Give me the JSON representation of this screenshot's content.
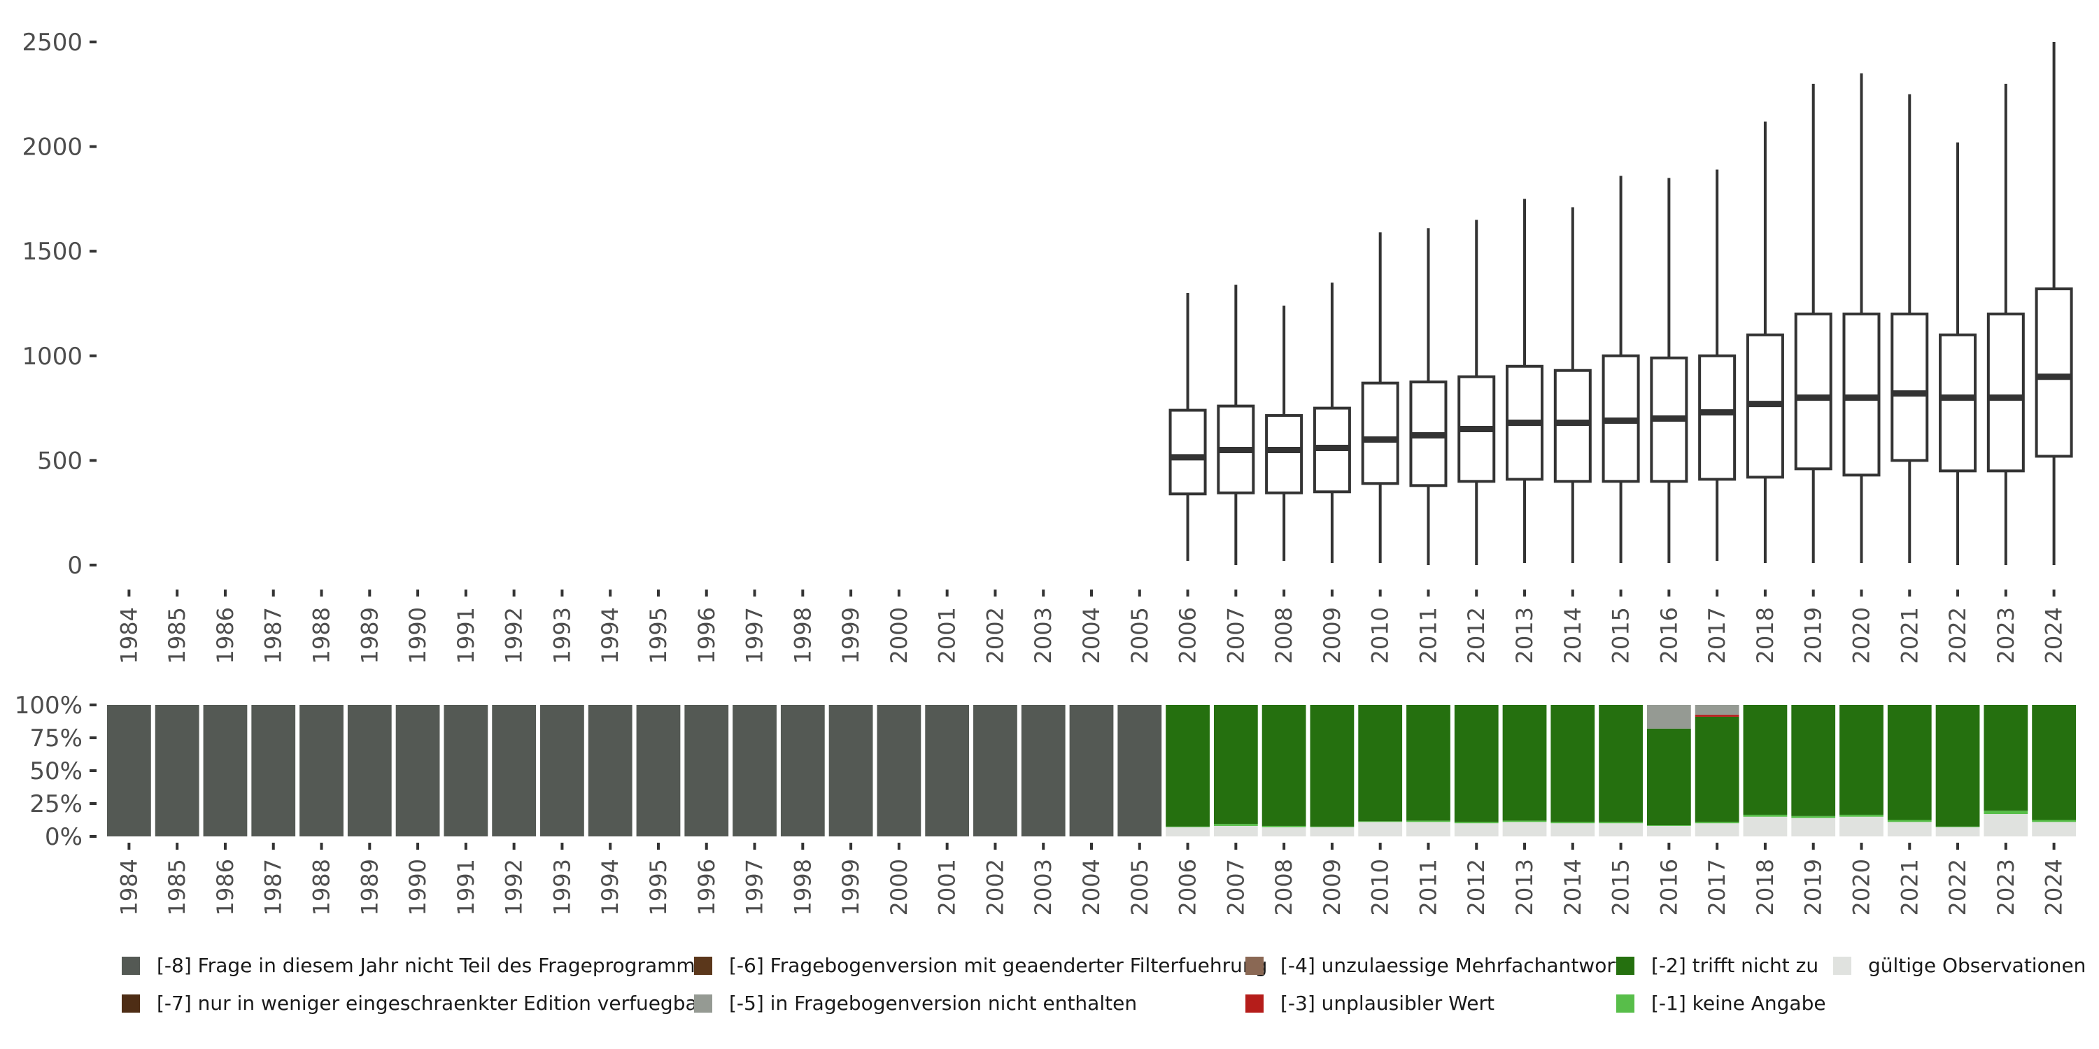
{
  "chart_data": [
    {
      "type": "boxplot",
      "title": "",
      "xlabel": "",
      "ylabel": "",
      "ylim": [
        0,
        2500
      ],
      "yticks": [
        0,
        500,
        1000,
        1500,
        2000,
        2500
      ],
      "categories": [
        "1984",
        "1985",
        "1986",
        "1987",
        "1988",
        "1989",
        "1990",
        "1991",
        "1992",
        "1993",
        "1994",
        "1995",
        "1996",
        "1997",
        "1998",
        "1999",
        "2000",
        "2001",
        "2002",
        "2003",
        "2004",
        "2005",
        "2006",
        "2007",
        "2008",
        "2009",
        "2010",
        "2011",
        "2012",
        "2013",
        "2014",
        "2015",
        "2016",
        "2017",
        "2018",
        "2019",
        "2020",
        "2021",
        "2022",
        "2023",
        "2024"
      ],
      "boxes": [
        {
          "year": "2006",
          "whisker_low": 20,
          "q1": 340,
          "median": 515,
          "q3": 740,
          "whisker_high": 1300
        },
        {
          "year": "2007",
          "whisker_low": 0,
          "q1": 345,
          "median": 550,
          "q3": 760,
          "whisker_high": 1340
        },
        {
          "year": "2008",
          "whisker_low": 20,
          "q1": 345,
          "median": 550,
          "q3": 715,
          "whisker_high": 1240
        },
        {
          "year": "2009",
          "whisker_low": 10,
          "q1": 350,
          "median": 560,
          "q3": 750,
          "whisker_high": 1350
        },
        {
          "year": "2010",
          "whisker_low": 10,
          "q1": 390,
          "median": 600,
          "q3": 870,
          "whisker_high": 1590
        },
        {
          "year": "2011",
          "whisker_low": 0,
          "q1": 380,
          "median": 620,
          "q3": 875,
          "whisker_high": 1610
        },
        {
          "year": "2012",
          "whisker_low": 0,
          "q1": 400,
          "median": 650,
          "q3": 900,
          "whisker_high": 1650
        },
        {
          "year": "2013",
          "whisker_low": 10,
          "q1": 410,
          "median": 680,
          "q3": 950,
          "whisker_high": 1750
        },
        {
          "year": "2014",
          "whisker_low": 10,
          "q1": 400,
          "median": 680,
          "q3": 930,
          "whisker_high": 1710
        },
        {
          "year": "2015",
          "whisker_low": 10,
          "q1": 400,
          "median": 690,
          "q3": 1000,
          "whisker_high": 1860
        },
        {
          "year": "2016",
          "whisker_low": 10,
          "q1": 400,
          "median": 700,
          "q3": 990,
          "whisker_high": 1850
        },
        {
          "year": "2017",
          "whisker_low": 20,
          "q1": 410,
          "median": 730,
          "q3": 1000,
          "whisker_high": 1890
        },
        {
          "year": "2018",
          "whisker_low": 10,
          "q1": 420,
          "median": 770,
          "q3": 1100,
          "whisker_high": 2120
        },
        {
          "year": "2019",
          "whisker_low": 10,
          "q1": 460,
          "median": 800,
          "q3": 1200,
          "whisker_high": 2300
        },
        {
          "year": "2020",
          "whisker_low": 10,
          "q1": 430,
          "median": 800,
          "q3": 1200,
          "whisker_high": 2350
        },
        {
          "year": "2021",
          "whisker_low": 10,
          "q1": 500,
          "median": 820,
          "q3": 1200,
          "whisker_high": 2250
        },
        {
          "year": "2022",
          "whisker_low": 0,
          "q1": 450,
          "median": 800,
          "q3": 1100,
          "whisker_high": 2020
        },
        {
          "year": "2023",
          "whisker_low": 0,
          "q1": 450,
          "median": 800,
          "q3": 1200,
          "whisker_high": 2300
        },
        {
          "year": "2024",
          "whisker_low": 0,
          "q1": 520,
          "median": 900,
          "q3": 1320,
          "whisker_high": 2500
        }
      ]
    },
    {
      "type": "stacked_bar",
      "ylim": [
        0,
        100
      ],
      "ytick_labels": [
        "0%",
        "25%",
        "50%",
        "75%",
        "100%"
      ],
      "yticks": [
        0,
        25,
        50,
        75,
        100
      ],
      "categories": [
        "1984",
        "1985",
        "1986",
        "1987",
        "1988",
        "1989",
        "1990",
        "1991",
        "1992",
        "1993",
        "1994",
        "1995",
        "1996",
        "1997",
        "1998",
        "1999",
        "2000",
        "2001",
        "2002",
        "2003",
        "2004",
        "2005",
        "2006",
        "2007",
        "2008",
        "2009",
        "2010",
        "2011",
        "2012",
        "2013",
        "2014",
        "2015",
        "2016",
        "2017",
        "2018",
        "2019",
        "2020",
        "2021",
        "2022",
        "2023",
        "2024"
      ],
      "stack_order": [
        "valid",
        "m1",
        "m2",
        "m3",
        "m4",
        "m5",
        "m6",
        "m7",
        "m8"
      ],
      "series": [
        {
          "key": "valid",
          "name": "gültige Observationen",
          "color": "#e0e2df",
          "values": [
            0,
            0,
            0,
            0,
            0,
            0,
            0,
            0,
            0,
            0,
            0,
            0,
            0,
            0,
            0,
            0,
            0,
            0,
            0,
            0,
            0,
            0,
            7,
            8,
            7,
            7,
            11,
            11,
            10,
            11,
            10,
            10,
            8,
            10,
            15,
            14,
            15,
            11,
            7,
            17,
            11
          ]
        },
        {
          "key": "m1",
          "name": "[-1] keine Angabe",
          "color": "#58be4a",
          "values": [
            0,
            0,
            0,
            0,
            0,
            0,
            0,
            0,
            0,
            0,
            0,
            0,
            0,
            0,
            0,
            0,
            0,
            0,
            0,
            0,
            0,
            0,
            0.5,
            1.5,
            1,
            0.5,
            0.5,
            1,
            1,
            1,
            1,
            1,
            0.5,
            1,
            1.5,
            1.5,
            1.5,
            1.5,
            0.5,
            2.5,
            1.5
          ]
        },
        {
          "key": "m2",
          "name": "[-2] trifft nicht zu",
          "color": "#25700f",
          "values": [
            0,
            0,
            0,
            0,
            0,
            0,
            0,
            0,
            0,
            0,
            0,
            0,
            0,
            0,
            0,
            0,
            0,
            0,
            0,
            0,
            0,
            0,
            92.5,
            90.5,
            92,
            92.5,
            88.5,
            88,
            89,
            88,
            89,
            89,
            73.5,
            80,
            83.5,
            84.5,
            83.5,
            87.5,
            92.5,
            80.5,
            87.5
          ]
        },
        {
          "key": "m3",
          "name": "[-3] unplausibler Wert",
          "color": "#b51d1a",
          "values": [
            0,
            0,
            0,
            0,
            0,
            0,
            0,
            0,
            0,
            0,
            0,
            0,
            0,
            0,
            0,
            0,
            0,
            0,
            0,
            0,
            0,
            0,
            0,
            0,
            0,
            0,
            0,
            0,
            0,
            0,
            0,
            0,
            0,
            1.5,
            0,
            0,
            0,
            0,
            0,
            0,
            0
          ]
        },
        {
          "key": "m4",
          "name": "[-4] unzulaessige Mehrfachantwort",
          "color": "#8a6854",
          "values": [
            0,
            0,
            0,
            0,
            0,
            0,
            0,
            0,
            0,
            0,
            0,
            0,
            0,
            0,
            0,
            0,
            0,
            0,
            0,
            0,
            0,
            0,
            0,
            0,
            0,
            0,
            0,
            0,
            0,
            0,
            0,
            0,
            0,
            0,
            0,
            0,
            0,
            0,
            0,
            0,
            0
          ]
        },
        {
          "key": "m5",
          "name": "[-5] in Fragebogenversion nicht enthalten",
          "color": "#959a93",
          "values": [
            0,
            0,
            0,
            0,
            0,
            0,
            0,
            0,
            0,
            0,
            0,
            0,
            0,
            0,
            0,
            0,
            0,
            0,
            0,
            0,
            0,
            0,
            0,
            0,
            0,
            0,
            0,
            0,
            0,
            0,
            0,
            0,
            18,
            7.5,
            0,
            0,
            0,
            0,
            0,
            0,
            0
          ]
        },
        {
          "key": "m6",
          "name": "[-6] Fragebogenversion mit geaenderter Filterfuehrung",
          "color": "#5b371b",
          "values": [
            0,
            0,
            0,
            0,
            0,
            0,
            0,
            0,
            0,
            0,
            0,
            0,
            0,
            0,
            0,
            0,
            0,
            0,
            0,
            0,
            0,
            0,
            0,
            0,
            0,
            0,
            0,
            0,
            0,
            0,
            0,
            0,
            0,
            0,
            0,
            0,
            0,
            0,
            0,
            0,
            0
          ]
        },
        {
          "key": "m7",
          "name": "[-7] nur in weniger eingeschraenkter Edition verfuegbar",
          "color": "#4e2d15",
          "values": [
            0,
            0,
            0,
            0,
            0,
            0,
            0,
            0,
            0,
            0,
            0,
            0,
            0,
            0,
            0,
            0,
            0,
            0,
            0,
            0,
            0,
            0,
            0,
            0,
            0,
            0,
            0,
            0,
            0,
            0,
            0,
            0,
            0,
            0,
            0,
            0,
            0,
            0,
            0,
            0,
            0
          ]
        },
        {
          "key": "m8",
          "name": "[-8] Frage in diesem Jahr nicht Teil des Frageprogramms",
          "color": "#545954",
          "values": [
            100,
            100,
            100,
            100,
            100,
            100,
            100,
            100,
            100,
            100,
            100,
            100,
            100,
            100,
            100,
            100,
            100,
            100,
            100,
            100,
            100,
            100,
            0,
            0,
            0,
            0,
            0,
            0,
            0,
            0,
            0,
            0,
            0,
            0,
            0,
            0,
            0,
            0,
            0,
            0,
            0
          ]
        }
      ]
    }
  ],
  "legend": {
    "items": [
      {
        "label": "[-8] Frage in diesem Jahr nicht Teil des Frageprogramms",
        "color": "#545954"
      },
      {
        "label": "[-7] nur in weniger eingeschraenkter Edition verfuegbar",
        "color": "#4e2d15"
      },
      {
        "label": "[-6] Fragebogenversion mit geaenderter Filterfuehrung",
        "color": "#5b371b"
      },
      {
        "label": "[-5] in Fragebogenversion nicht enthalten",
        "color": "#959a93"
      },
      {
        "label": "[-4] unzulaessige Mehrfachantwort",
        "color": "#8a6854"
      },
      {
        "label": "[-3] unplausibler Wert",
        "color": "#b51d1a"
      },
      {
        "label": "[-2] trifft nicht zu",
        "color": "#25700f"
      },
      {
        "label": "[-1] keine Angabe",
        "color": "#58be4a"
      },
      {
        "label": "gültige Observationen",
        "color": "#e0e2df"
      }
    ]
  }
}
